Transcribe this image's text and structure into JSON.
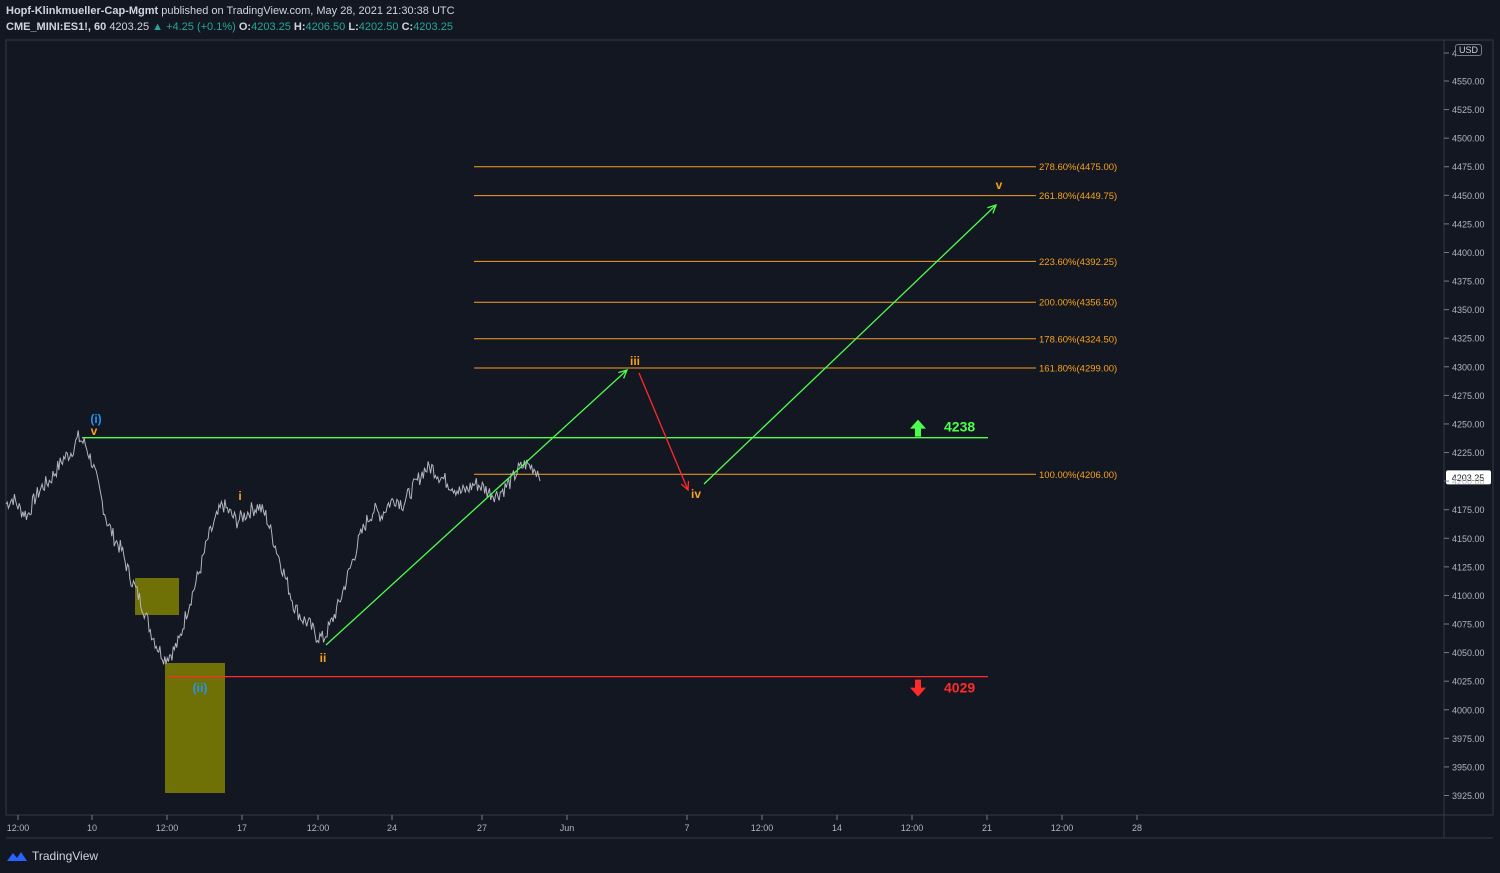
{
  "header": {
    "author": "Hopf-Klinkmueller-Cap-Mgmt",
    "published": "published on TradingView.com, May 28, 2021 21:30:38 UTC",
    "symbol": "CME_MINI:ES1!, 60",
    "last": "4203.25",
    "change": "▲ +4.25 (+0.1%)",
    "o_label": "O:",
    "o": "4203.25",
    "h_label": "H:",
    "h": "4206.50",
    "l_label": "L:",
    "l": "4202.50",
    "c_label": "C:",
    "c": "4203.25"
  },
  "currency": "USD",
  "footer": {
    "brand": "TradingView"
  },
  "colors": {
    "background": "#131722",
    "fib": "#f7a21b",
    "green": "#4cff4c",
    "red": "#ff2a2a",
    "blue": "#2196f3",
    "box": "#808000",
    "price": "#b2b5be"
  },
  "chart_data": {
    "type": "line",
    "y_axis_ticks": [
      "4",
      "4550.00",
      "4525.00",
      "4500.00",
      "4475.00",
      "4450.00",
      "4425.00",
      "4400.00",
      "4375.00",
      "4350.00",
      "4325.00",
      "4300.00",
      "4275.00",
      "4250.00",
      "4225.00",
      "4200.00",
      "4175.00",
      "4150.00",
      "4125.00",
      "4100.00",
      "4075.00",
      "4050.00",
      "4025.00",
      "4000.00",
      "3975.00",
      "3950.00",
      "3925.00"
    ],
    "x_axis_ticks": [
      "12:00",
      "10",
      "12:00",
      "17",
      "12:00",
      "24",
      "27",
      "Jun",
      "7",
      "12:00",
      "14",
      "12:00",
      "21",
      "12:00",
      "28"
    ],
    "last_price_label": "4203.25",
    "price_path": [
      4180,
      4185,
      4175,
      4170,
      4185,
      4195,
      4200,
      4210,
      4220,
      4225,
      4238,
      4232,
      4215,
      4190,
      4165,
      4150,
      4140,
      4120,
      4105,
      4090,
      4070,
      4055,
      4045,
      4050,
      4060,
      4085,
      4105,
      4125,
      4150,
      4165,
      4180,
      4172,
      4165,
      4170,
      4175,
      4178,
      4170,
      4150,
      4130,
      4110,
      4090,
      4080,
      4075,
      4065,
      4062,
      4075,
      4090,
      4110,
      4130,
      4150,
      4165,
      4175,
      4170,
      4180,
      4185,
      4180,
      4190,
      4200,
      4210,
      4212,
      4205,
      4200,
      4195,
      4190,
      4193,
      4198,
      4195,
      4190,
      4188,
      4193,
      4200,
      4210,
      4215,
      4212,
      4207
    ],
    "fib_levels": [
      {
        "label": "278.60%(4475.00)",
        "value": 4475.0
      },
      {
        "label": "261.80%(4449.75)",
        "value": 4449.75
      },
      {
        "label": "223.60%(4392.25)",
        "value": 4392.25
      },
      {
        "label": "200.00%(4356.50)",
        "value": 4356.5
      },
      {
        "label": "178.60%(4324.50)",
        "value": 4324.5
      },
      {
        "label": "161.80%(4299.00)",
        "value": 4299.0
      },
      {
        "label": "100.00%(4206.00)",
        "value": 4206.0
      }
    ],
    "resistance": {
      "label": "4238",
      "value": 4238
    },
    "support": {
      "label": "4029",
      "value": 4029
    },
    "wave_labels": [
      {
        "text": "(i)",
        "color": "blue"
      },
      {
        "text": "v",
        "color": "fib"
      },
      {
        "text": "(ii)",
        "color": "blue"
      },
      {
        "text": "i",
        "color": "fib"
      },
      {
        "text": "ii",
        "color": "fib"
      },
      {
        "text": "iii",
        "color": "fib"
      },
      {
        "text": "iv",
        "color": "fib"
      },
      {
        "text": "v",
        "color": "fib"
      }
    ]
  }
}
